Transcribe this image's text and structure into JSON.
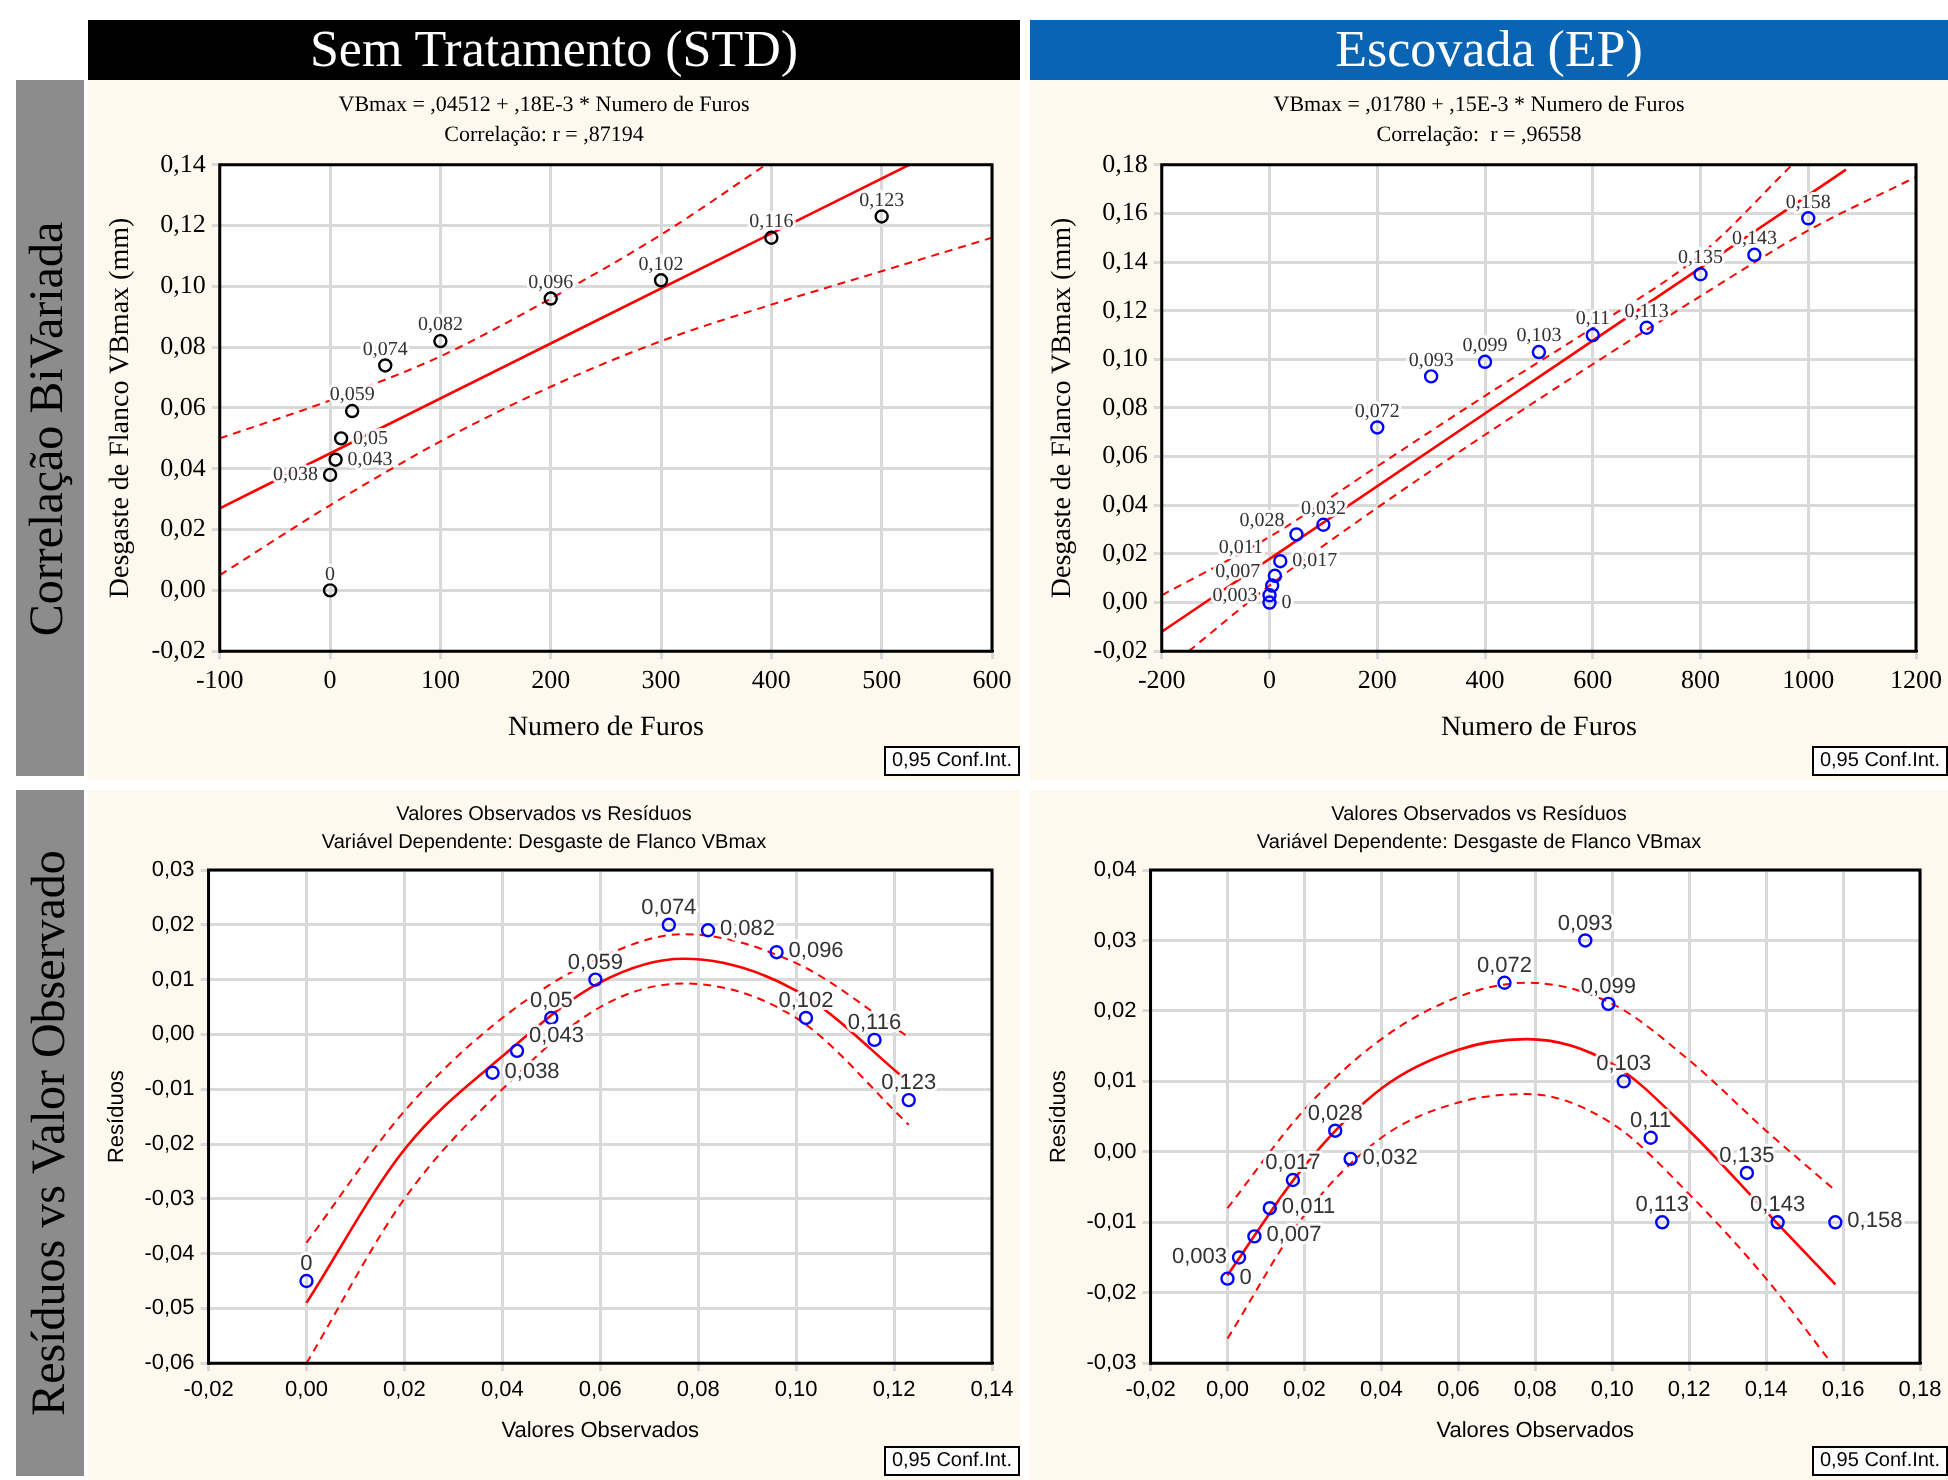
{
  "chart_data": [
    {
      "type": "other",
      "annotations": [
        "Sem Tratamento (STD)",
        "Escovada (EP)",
        "Correlação BiVariada",
        "Resíduos vs Valor Observado"
      ]
    },
    {
      "type": "scatter",
      "title": "VBmax = ,04512 + ,18E-3 * Numero de Furos",
      "subtitle": "Correlação: r = ,87194",
      "xlabel": "Numero de Furos",
      "ylabel": "Desgaste de Flanco VBmax (mm)",
      "annotations": [
        "0,95 Conf.Int."
      ],
      "xlim": [
        -100,
        600
      ],
      "xticks": [
        -100,
        0,
        100,
        200,
        300,
        400,
        500,
        600
      ],
      "ylim": [
        -0.02,
        0.14
      ],
      "yticks": [
        {
          "value": -0.02,
          "label": "-0,02"
        },
        {
          "value": 0,
          "label": "0,00"
        },
        {
          "value": 0.02,
          "label": "0,02"
        },
        {
          "value": 0.04,
          "label": "0,04"
        },
        {
          "value": 0.06,
          "label": "0,06"
        },
        {
          "value": 0.08,
          "label": "0,08"
        },
        {
          "value": 0.1,
          "label": "0,10"
        },
        {
          "value": 0.12,
          "label": "0,12"
        },
        {
          "value": 0.14,
          "label": "0,14"
        }
      ],
      "grid": true,
      "series": [
        {
          "type": "scatter",
          "color": "#000000",
          "marker": "circle",
          "x": [
            0,
            0,
            5,
            10,
            20,
            50,
            100,
            200,
            300,
            400,
            500
          ],
          "values": [
            0,
            0.038,
            0.043,
            0.05,
            0.059,
            0.074,
            0.082,
            0.096,
            0.102,
            0.116,
            0.123
          ],
          "value_labels": [
            "0",
            "0,038",
            "0,043",
            "0,05",
            "0,059",
            "0,074",
            "0,082",
            "0,096",
            "0,102",
            "0,116",
            "0,123"
          ]
        },
        {
          "type": "line",
          "color": "#ff0000",
          "marker": "none",
          "line_style": "solid",
          "x": [
            -100,
            525
          ],
          "values": [
            0.027,
            0.14
          ]
        },
        {
          "type": "line",
          "color": "#ff0000",
          "marker": "none",
          "line_style": "dashed",
          "x": [
            -100,
            0,
            100,
            200,
            300,
            395
          ],
          "values": [
            0.05,
            0.0625,
            0.077,
            0.096,
            0.117,
            0.14
          ]
        },
        {
          "type": "line",
          "color": "#ff0000",
          "marker": "none",
          "line_style": "dashed",
          "x": [
            -100,
            0,
            100,
            200,
            300,
            400,
            500,
            600
          ],
          "values": [
            0.005,
            0.028,
            0.049,
            0.067,
            0.082,
            0.094,
            0.105,
            0.116
          ]
        }
      ]
    },
    {
      "type": "scatter",
      "title": "VBmax = ,01780 + ,15E-3 * Numero de Furos",
      "subtitle": "Correlação:  r = ,96558",
      "xlabel": "Numero de Furos",
      "ylabel": "Desgaste de Flanco VBmax (mm)",
      "annotations": [
        "0,95 Conf.Int."
      ],
      "xlim": [
        -200,
        1200
      ],
      "xticks": [
        -200,
        0,
        200,
        400,
        600,
        800,
        1000,
        1200
      ],
      "ylim": [
        -0.02,
        0.18
      ],
      "yticks": [
        {
          "value": -0.02,
          "label": "-0,02"
        },
        {
          "value": 0,
          "label": "0,00"
        },
        {
          "value": 0.02,
          "label": "0,02"
        },
        {
          "value": 0.04,
          "label": "0,04"
        },
        {
          "value": 0.06,
          "label": "0,06"
        },
        {
          "value": 0.08,
          "label": "0,08"
        },
        {
          "value": 0.1,
          "label": "0,10"
        },
        {
          "value": 0.12,
          "label": "0,12"
        },
        {
          "value": 0.14,
          "label": "0,14"
        },
        {
          "value": 0.16,
          "label": "0,16"
        },
        {
          "value": 0.18,
          "label": "0,18"
        }
      ],
      "grid": true,
      "series": [
        {
          "type": "scatter",
          "color": "#0000ff",
          "marker": "circle",
          "x": [
            0,
            0,
            5,
            10,
            20,
            50,
            100,
            200,
            300,
            400,
            500,
            600,
            700,
            800,
            900,
            1000
          ],
          "values": [
            0,
            0.003,
            0.007,
            0.011,
            0.017,
            0.028,
            0.032,
            0.072,
            0.093,
            0.099,
            0.103,
            0.11,
            0.113,
            0.135,
            0.143,
            0.158
          ],
          "value_labels": [
            "0",
            "0,003",
            "0,007",
            "0,011",
            "0,017",
            "0,028",
            "0,032",
            "0,072",
            "0,093",
            "0,099",
            "0,103",
            "0,11",
            "0,113",
            "0,135",
            "0,143",
            "0,158"
          ]
        },
        {
          "type": "line",
          "color": "#ff0000",
          "marker": "none",
          "line_style": "solid",
          "x": [
            -200,
            1070
          ],
          "values": [
            -0.012,
            0.178
          ]
        },
        {
          "type": "line",
          "color": "#ff0000",
          "marker": "none",
          "line_style": "dashed",
          "x": [
            -200,
            0,
            200,
            400,
            600,
            800,
            970
          ],
          "values": [
            0.003,
            0.027,
            0.056,
            0.085,
            0.113,
            0.143,
            0.18
          ]
        },
        {
          "type": "line",
          "color": "#ff0000",
          "marker": "none",
          "line_style": "dashed",
          "x": [
            -150,
            0,
            200,
            400,
            600,
            800,
            1000,
            1200
          ],
          "values": [
            -0.02,
            0.007,
            0.039,
            0.069,
            0.098,
            0.126,
            0.153,
            0.175
          ]
        }
      ]
    },
    {
      "type": "scatter",
      "title": "Valores Observados vs Resíduos",
      "subtitle": "Variável Dependente: Desgaste de Flanco VBmax",
      "xlabel": "Valores Observados",
      "ylabel": "Resíduos",
      "annotations": [
        "0,95 Conf.Int.",
        {
          "text": "0",
          "x": 0,
          "y": -0.045
        },
        {
          "text": "0,038",
          "x": 0.038,
          "y": -0.007
        },
        {
          "text": "0,043",
          "x": 0.043,
          "y": -0.003
        },
        {
          "text": "0,05",
          "x": 0.05,
          "y": 0.003
        },
        {
          "text": "0,059",
          "x": 0.059,
          "y": 0.01
        },
        {
          "text": "0,074",
          "x": 0.074,
          "y": 0.02
        },
        {
          "text": "0,082",
          "x": 0.082,
          "y": 0.019
        },
        {
          "text": "0,096",
          "x": 0.096,
          "y": 0.015
        },
        {
          "text": "0,102",
          "x": 0.102,
          "y": 0.003
        },
        {
          "text": "0,116",
          "x": 0.116,
          "y": -0.001
        },
        {
          "text": "0,123",
          "x": 0.123,
          "y": -0.012
        }
      ],
      "xlim": [
        -0.02,
        0.14
      ],
      "xticks": [
        {
          "value": -0.02,
          "label": "-0,02"
        },
        {
          "value": 0,
          "label": "0,00"
        },
        {
          "value": 0.02,
          "label": "0,02"
        },
        {
          "value": 0.04,
          "label": "0,04"
        },
        {
          "value": 0.06,
          "label": "0,06"
        },
        {
          "value": 0.08,
          "label": "0,08"
        },
        {
          "value": 0.1,
          "label": "0,10"
        },
        {
          "value": 0.12,
          "label": "0,12"
        },
        {
          "value": 0.14,
          "label": "0,14"
        }
      ],
      "ylim": [
        -0.06,
        0.03
      ],
      "yticks": [
        {
          "value": -0.06,
          "label": "-0,06"
        },
        {
          "value": -0.05,
          "label": "-0,05"
        },
        {
          "value": -0.04,
          "label": "-0,04"
        },
        {
          "value": -0.03,
          "label": "-0,03"
        },
        {
          "value": -0.02,
          "label": "-0,02"
        },
        {
          "value": -0.01,
          "label": "-0,01"
        },
        {
          "value": 0,
          "label": "0,00"
        },
        {
          "value": 0.01,
          "label": "0,01"
        },
        {
          "value": 0.02,
          "label": "0,02"
        },
        {
          "value": 0.03,
          "label": "0,03"
        }
      ],
      "grid": true,
      "series": [
        {
          "type": "scatter",
          "color": "#0000ff",
          "marker": "circle",
          "x": [
            0,
            0.038,
            0.043,
            0.05,
            0.059,
            0.074,
            0.082,
            0.096,
            0.102,
            0.116,
            0.123
          ],
          "values": [
            -0.045,
            -0.007,
            -0.003,
            0.003,
            0.01,
            0.02,
            0.019,
            0.015,
            0.003,
            -0.001,
            -0.012
          ]
        },
        {
          "type": "line",
          "color": "#ff0000",
          "marker": "none",
          "line_style": "solid",
          "x": [
            0,
            0.02,
            0.04,
            0.06,
            0.077,
            0.1,
            0.123
          ],
          "values": [
            -0.049,
            -0.021,
            -0.004,
            0.0095,
            0.0138,
            0.008,
            -0.0087
          ]
        },
        {
          "type": "line",
          "color": "#ff0000",
          "marker": "none",
          "line_style": "dashed",
          "x": [
            0,
            0.02,
            0.04,
            0.06,
            0.077,
            0.1,
            0.123
          ],
          "values": [
            -0.038,
            -0.014,
            0.003,
            0.014,
            0.0183,
            0.013,
            -0.0005
          ]
        },
        {
          "type": "line",
          "color": "#ff0000",
          "marker": "none",
          "line_style": "dashed",
          "x": [
            0,
            0.02,
            0.04,
            0.06,
            0.077,
            0.1,
            0.123
          ],
          "values": [
            -0.06,
            -0.03,
            -0.01,
            0.005,
            0.0093,
            0.003,
            -0.0165
          ]
        }
      ]
    },
    {
      "type": "scatter",
      "title": "Valores Observados vs Resíduos",
      "subtitle": "Variável Dependente: Desgaste de Flanco VBmax",
      "xlabel": "Valores Observados",
      "ylabel": "Resíduos",
      "annotations": [
        "0,95 Conf.Int.",
        {
          "text": "0",
          "x": 0,
          "y": -0.018
        },
        {
          "text": "0,003",
          "x": 0.003,
          "y": -0.015
        },
        {
          "text": "0,007",
          "x": 0.007,
          "y": -0.012
        },
        {
          "text": "0,011",
          "x": 0.011,
          "y": -0.008
        },
        {
          "text": "0,017",
          "x": 0.017,
          "y": -0.004
        },
        {
          "text": "0,028",
          "x": 0.028,
          "y": 0.003
        },
        {
          "text": "0,032",
          "x": 0.032,
          "y": -0.001
        },
        {
          "text": "0,072",
          "x": 0.072,
          "y": 0.024
        },
        {
          "text": "0,093",
          "x": 0.093,
          "y": 0.03
        },
        {
          "text": "0,099",
          "x": 0.099,
          "y": 0.021
        },
        {
          "text": "0,103",
          "x": 0.103,
          "y": 0.01
        },
        {
          "text": "0,11",
          "x": 0.11,
          "y": 0.002
        },
        {
          "text": "0,113",
          "x": 0.113,
          "y": -0.01
        },
        {
          "text": "0,135",
          "x": 0.135,
          "y": -0.003
        },
        {
          "text": "0,143",
          "x": 0.143,
          "y": -0.01
        },
        {
          "text": "0,158",
          "x": 0.158,
          "y": -0.01
        }
      ],
      "xlim": [
        -0.02,
        0.18
      ],
      "xticks": [
        {
          "value": -0.02,
          "label": "-0,02"
        },
        {
          "value": 0,
          "label": "0,00"
        },
        {
          "value": 0.02,
          "label": "0,02"
        },
        {
          "value": 0.04,
          "label": "0,04"
        },
        {
          "value": 0.06,
          "label": "0,06"
        },
        {
          "value": 0.08,
          "label": "0,08"
        },
        {
          "value": 0.1,
          "label": "0,10"
        },
        {
          "value": 0.12,
          "label": "0,12"
        },
        {
          "value": 0.14,
          "label": "0,14"
        },
        {
          "value": 0.16,
          "label": "0,16"
        },
        {
          "value": 0.18,
          "label": "0,18"
        }
      ],
      "ylim": [
        -0.03,
        0.04
      ],
      "yticks": [
        {
          "value": -0.03,
          "label": "-0,03"
        },
        {
          "value": -0.02,
          "label": "-0,02"
        },
        {
          "value": -0.01,
          "label": "-0,01"
        },
        {
          "value": 0,
          "label": "0,00"
        },
        {
          "value": 0.01,
          "label": "0,01"
        },
        {
          "value": 0.02,
          "label": "0,02"
        },
        {
          "value": 0.03,
          "label": "0,03"
        },
        {
          "value": 0.04,
          "label": "0,04"
        }
      ],
      "grid": true,
      "series": [
        {
          "type": "scatter",
          "color": "#0000ff",
          "marker": "circle",
          "x": [
            0,
            0.003,
            0.007,
            0.011,
            0.017,
            0.028,
            0.032,
            0.072,
            0.093,
            0.099,
            0.103,
            0.11,
            0.113,
            0.135,
            0.143,
            0.158
          ],
          "values": [
            -0.018,
            -0.015,
            -0.012,
            -0.008,
            -0.004,
            0.003,
            -0.001,
            0.024,
            0.03,
            0.021,
            0.01,
            0.002,
            -0.01,
            -0.003,
            -0.01,
            -0.01
          ]
        },
        {
          "type": "line",
          "color": "#ff0000",
          "marker": "none",
          "line_style": "solid",
          "x": [
            0,
            0.02,
            0.04,
            0.06,
            0.078,
            0.1,
            0.12,
            0.14,
            0.158
          ],
          "values": [
            -0.0175,
            -0.002,
            0.009,
            0.0145,
            0.016,
            0.0125,
            0.003,
            -0.0085,
            -0.0188
          ]
        },
        {
          "type": "line",
          "color": "#ff0000",
          "marker": "none",
          "line_style": "dashed",
          "x": [
            0,
            0.02,
            0.04,
            0.06,
            0.078,
            0.1,
            0.12,
            0.14,
            0.158
          ],
          "values": [
            -0.008,
            0.006,
            0.016,
            0.022,
            0.024,
            0.021,
            0.013,
            0.003,
            -0.0055
          ]
        },
        {
          "type": "line",
          "color": "#ff0000",
          "marker": "none",
          "line_style": "dashed",
          "x": [
            0,
            0.02,
            0.04,
            0.06,
            0.078,
            0.1,
            0.12,
            0.14,
            0.157
          ],
          "values": [
            -0.0265,
            -0.009,
            0.002,
            0.007,
            0.0082,
            0.004,
            -0.006,
            -0.018,
            -0.03
          ]
        }
      ]
    }
  ]
}
